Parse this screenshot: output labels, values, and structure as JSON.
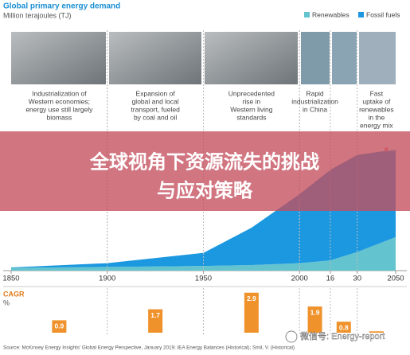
{
  "chart_data": [
    {
      "type": "area",
      "title": "Global primary energy demand",
      "subtitle": "Million terajoules (TJ)",
      "stacked": true,
      "x": [
        1850,
        1900,
        1950,
        1975,
        2000,
        2016,
        2030,
        2050
      ],
      "series": [
        {
          "name": "Renewables",
          "color": "#63c4cf",
          "values": [
            15,
            20,
            25,
            30,
            40,
            55,
            100,
            180
          ]
        },
        {
          "name": "Fossil fuels",
          "color": "#1b98e0",
          "values": [
            2,
            20,
            70,
            200,
            370,
            485,
            520,
            470
          ]
        }
      ],
      "xlim": [
        1850,
        2050
      ],
      "xticks": [
        1850,
        1900,
        1950,
        2000,
        {
          "value": 2016,
          "label": "16"
        },
        {
          "value": 2030,
          "label": "30"
        },
        2050
      ],
      "ylim": [
        0,
        700
      ],
      "annotations": [
        {
          "x": 2050,
          "y": 650
        }
      ],
      "eras": [
        {
          "start": 1850,
          "end": 1900,
          "lines": [
            "Industrialization of",
            "Western economies;",
            "energy use still largely",
            "biomass"
          ]
        },
        {
          "start": 1900,
          "end": 1950,
          "lines": [
            "Expansion of",
            "global and local",
            "transport, fueled",
            "by coal and oil"
          ]
        },
        {
          "start": 1950,
          "end": 2000,
          "lines": [
            "Unprecedented",
            "rise in",
            "Western living",
            "standards"
          ]
        },
        {
          "start": 2000,
          "end": 2016,
          "lines": [
            "Rapid",
            "industrialization",
            "in China"
          ]
        },
        {
          "start": 2030,
          "end": 2050,
          "lines": [
            "Fast",
            "uptake of",
            "renewables",
            "in the",
            "energy mix"
          ]
        }
      ],
      "legend": "top-right"
    },
    {
      "type": "bar",
      "title": "CAGR",
      "subtitle": "%",
      "color": "#f0922b",
      "periods": [
        [
          1850,
          1900
        ],
        [
          1900,
          1950
        ],
        [
          1950,
          2000
        ],
        [
          2000,
          2016
        ],
        [
          2016,
          2030
        ],
        [
          2030,
          2050
        ]
      ],
      "values": [
        0.9,
        1.7,
        2.9,
        1.9,
        0.8,
        0.1
      ],
      "ylim": [
        0,
        3
      ]
    }
  ],
  "source": "Source: McKinsey Energy Insights' Global Energy Perspective, January 2019; IEA Energy Balances (Historical); Smil, V. (Historical)",
  "overlay": {
    "lines": [
      "全球视角下资源流失的挑战",
      "与应对策略"
    ]
  },
  "watermark": "微信号: Energy-report"
}
